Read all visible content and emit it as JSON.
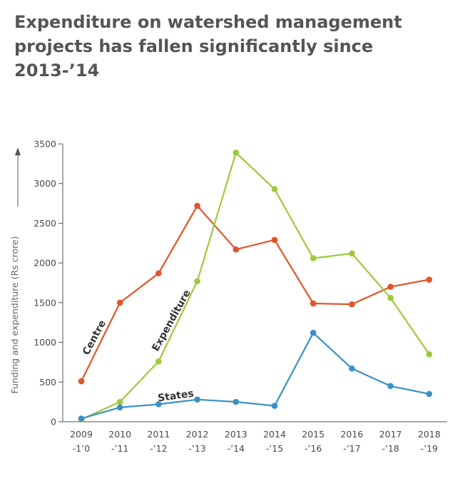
{
  "chart_data": {
    "type": "line",
    "title": "Expenditure on watershed management projects has fallen significantly since 2013-’14",
    "xlabel": "",
    "ylabel": "Funding and expenditure (Rs crore)",
    "ylim": [
      0,
      3500
    ],
    "yticks": [
      0,
      500,
      1000,
      1500,
      2000,
      2500,
      3000,
      3500
    ],
    "categories": [
      {
        "year": "2009",
        "sub": "-1’0"
      },
      {
        "year": "2010",
        "sub": "-’11"
      },
      {
        "year": "2011",
        "sub": "-’12"
      },
      {
        "year": "2012",
        "sub": "-’13"
      },
      {
        "year": "2013",
        "sub": "-’14"
      },
      {
        "year": "2014",
        "sub": "-’15"
      },
      {
        "year": "2015",
        "sub": "-’16"
      },
      {
        "year": "2016",
        "sub": "-’17"
      },
      {
        "year": "2017",
        "sub": "-’18"
      },
      {
        "year": "2018",
        "sub": "-’19"
      }
    ],
    "series": [
      {
        "name": "Centre",
        "color": "#e0552a",
        "values": [
          510,
          1500,
          1870,
          2720,
          2170,
          2290,
          1490,
          1480,
          1700,
          1790
        ]
      },
      {
        "name": "Expenditure",
        "color": "#9dc93b",
        "values": [
          30,
          250,
          760,
          1770,
          3390,
          2930,
          2060,
          2120,
          1560,
          850
        ]
      },
      {
        "name": "States",
        "color": "#3a92c4",
        "values": [
          40,
          180,
          220,
          280,
          250,
          200,
          1120,
          670,
          450,
          350
        ]
      }
    ]
  }
}
